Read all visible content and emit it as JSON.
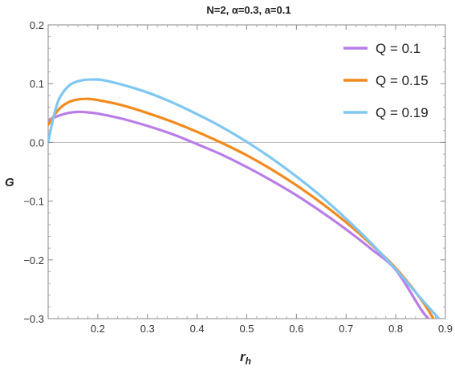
{
  "chart_data": {
    "type": "line",
    "title": "N=2, α=0.3, a=0.1",
    "xlabel": "r",
    "xlabel_sub": "h",
    "ylabel": "G",
    "xlim": [
      0.1,
      0.9
    ],
    "ylim": [
      -0.3,
      0.2
    ],
    "x_ticks": [
      {
        "value": 0.2,
        "label": "0.2"
      },
      {
        "value": 0.3,
        "label": "0.3"
      },
      {
        "value": 0.4,
        "label": "0.4"
      },
      {
        "value": 0.5,
        "label": "0.5"
      },
      {
        "value": 0.6,
        "label": "0.6"
      },
      {
        "value": 0.7,
        "label": "0.7"
      },
      {
        "value": 0.8,
        "label": "0.8"
      },
      {
        "value": 0.9,
        "label": "0.9"
      }
    ],
    "y_ticks": [
      {
        "value": 0.2,
        "label": "0.2"
      },
      {
        "value": 0.1,
        "label": "0.1"
      },
      {
        "value": 0.0,
        "label": "0.0"
      },
      {
        "value": -0.1,
        "label": "−0.1"
      },
      {
        "value": -0.2,
        "label": "−0.2"
      },
      {
        "value": -0.3,
        "label": "−0.3"
      }
    ],
    "grid": false,
    "legend_position": "top-right",
    "series": [
      {
        "name": "Q = 0.1",
        "color": "#b97de8",
        "x": [
          0.1,
          0.12,
          0.14,
          0.16,
          0.18,
          0.2,
          0.25,
          0.3,
          0.35,
          0.4,
          0.45,
          0.5,
          0.55,
          0.6,
          0.65,
          0.7,
          0.75,
          0.8,
          0.85,
          0.866
        ],
        "y": [
          0.038,
          0.045,
          0.05,
          0.052,
          0.051,
          0.049,
          0.04,
          0.028,
          0.014,
          -0.003,
          -0.021,
          -0.042,
          -0.065,
          -0.09,
          -0.118,
          -0.148,
          -0.181,
          -0.217,
          -0.283,
          -0.3
        ]
      },
      {
        "name": "Q = 0.15",
        "color": "#f28a1e",
        "x": [
          0.1,
          0.12,
          0.14,
          0.16,
          0.18,
          0.2,
          0.25,
          0.3,
          0.35,
          0.4,
          0.45,
          0.5,
          0.55,
          0.6,
          0.65,
          0.7,
          0.75,
          0.8,
          0.85,
          0.876
        ],
        "y": [
          0.03,
          0.055,
          0.068,
          0.073,
          0.074,
          0.072,
          0.063,
          0.05,
          0.035,
          0.018,
          -0.001,
          -0.022,
          -0.046,
          -0.073,
          -0.103,
          -0.136,
          -0.173,
          -0.214,
          -0.266,
          -0.3
        ]
      },
      {
        "name": "Q = 0.19",
        "color": "#7fc7f2",
        "x": [
          0.1,
          0.11,
          0.12,
          0.13,
          0.14,
          0.15,
          0.17,
          0.19,
          0.21,
          0.25,
          0.3,
          0.35,
          0.4,
          0.45,
          0.5,
          0.55,
          0.6,
          0.65,
          0.7,
          0.75,
          0.8,
          0.85,
          0.887
        ],
        "y": [
          0.0,
          0.04,
          0.07,
          0.085,
          0.095,
          0.101,
          0.106,
          0.107,
          0.106,
          0.098,
          0.085,
          0.068,
          0.048,
          0.026,
          0.001,
          -0.027,
          -0.058,
          -0.092,
          -0.13,
          -0.171,
          -0.216,
          -0.265,
          -0.3
        ]
      }
    ]
  }
}
